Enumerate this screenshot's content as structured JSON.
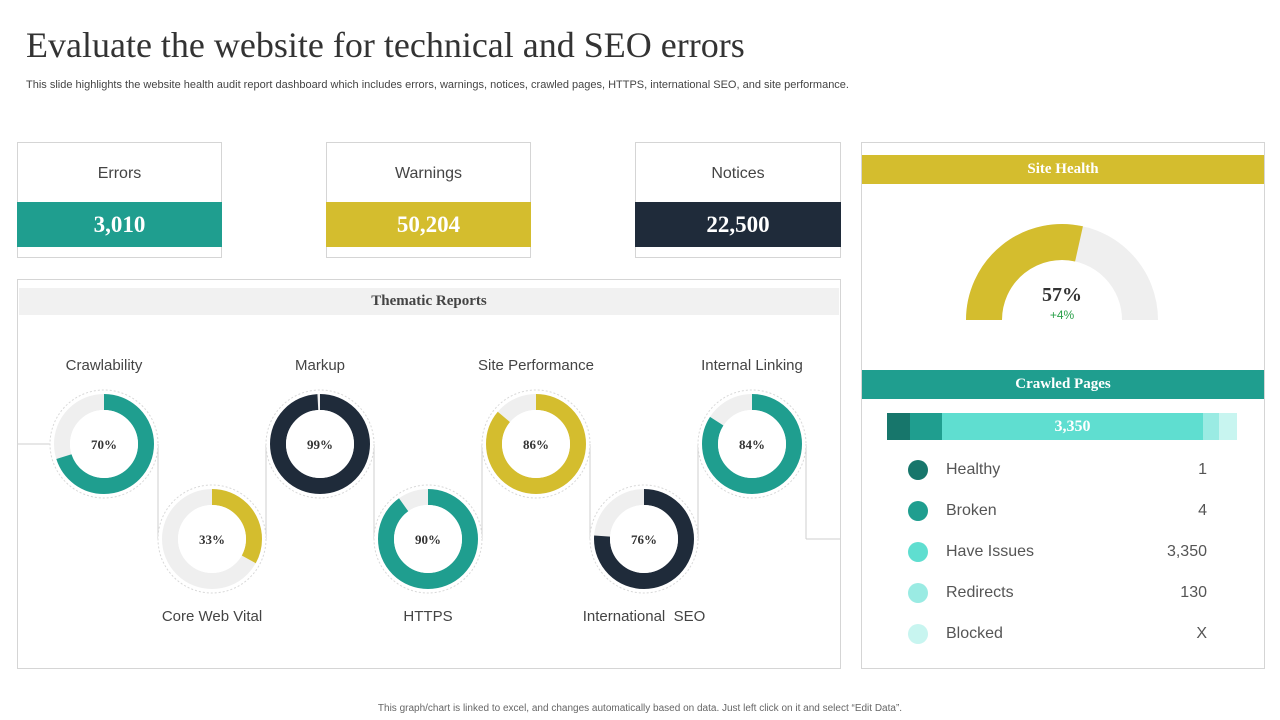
{
  "title": "Evaluate the website for technical and SEO errors",
  "subtitle": "This slide highlights the website health audit report dashboard which includes errors, warnings, notices, crawled pages, HTTPS, international SEO, and site performance.",
  "stats": [
    {
      "label": "Errors",
      "value": "3,010",
      "color": "#1f9e8f"
    },
    {
      "label": "Warnings",
      "value": "50,204",
      "color": "#d4bd2e"
    },
    {
      "label": "Notices",
      "value": "22,500",
      "color": "#1f2b3a"
    }
  ],
  "thematic": {
    "header": "Thematic Reports",
    "items": [
      {
        "label": "Crawlability",
        "percent": 70,
        "display": "70%",
        "color": "#1f9e8f"
      },
      {
        "label": "Core Web Vital",
        "percent": 33,
        "display": "33%",
        "color": "#d4bd2e"
      },
      {
        "label": "Markup",
        "percent": 99,
        "display": "99%",
        "color": "#1f2b3a"
      },
      {
        "label": "HTTPS",
        "percent": 90,
        "display": "90%",
        "color": "#1f9e8f"
      },
      {
        "label": "Site Performance",
        "percent": 86,
        "display": "86%",
        "color": "#d4bd2e"
      },
      {
        "label": "International  SEO",
        "percent": 76,
        "display": "76%",
        "color": "#1f2b3a"
      },
      {
        "label": "Internal Linking",
        "percent": 84,
        "display": "84%",
        "color": "#1f9e8f"
      }
    ]
  },
  "site_health": {
    "header": "Site Health",
    "percent": 57,
    "display": "57%",
    "change": "+4%",
    "color": "#d4bd2e",
    "track_color": "#efefef",
    "change_color": "#2aa04a"
  },
  "crawled": {
    "header": "Crawled Pages",
    "bar_value": "3,350",
    "items": [
      {
        "label": "Healthy",
        "value": "1",
        "color": "#17766b"
      },
      {
        "label": "Broken",
        "value": "4",
        "color": "#1f9e8f"
      },
      {
        "label": "Have Issues",
        "value": "3,350",
        "color": "#5fded0"
      },
      {
        "label": "Redirects",
        "value": "130",
        "color": "#9aebe3"
      },
      {
        "label": "Blocked",
        "value": "X",
        "color": "#c8f5f0"
      }
    ]
  },
  "footer": "This graph/chart is linked to excel, and changes automatically based on data. Just left click on it and select “Edit Data”."
}
